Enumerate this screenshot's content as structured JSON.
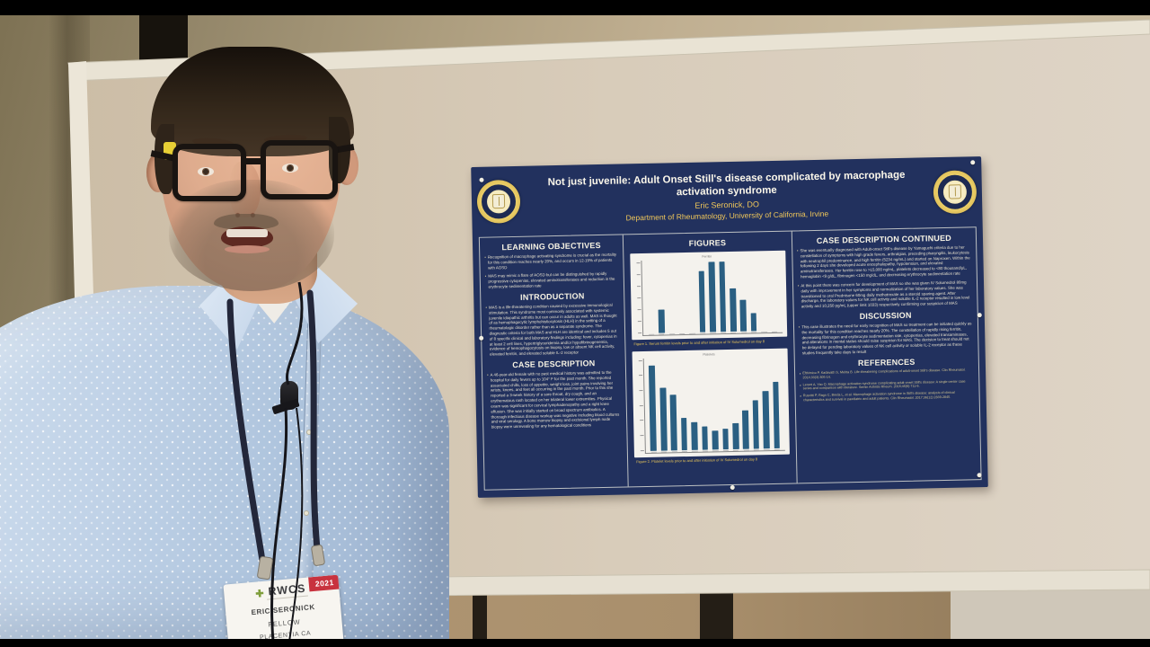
{
  "colors": {
    "poster_navy": "#22315e",
    "title_cream": "#fbf7ea",
    "gold": "#f0c75a",
    "bar_blue": "#2a5f82",
    "badge_red": "#c8323e",
    "badge_green": "#7f9e3c",
    "cork": "#d5c8b6"
  },
  "poster": {
    "title": "Not just juvenile: Adult Onset Still's disease complicated by macrophage activation syndrome",
    "author": "Eric Seronick, DO",
    "affiliation": "Department of Rheumatology, University of California, Irvine",
    "sections": {
      "learning_objectives": {
        "header": "LEARNING OBJECTIVES",
        "bullets": [
          "Recognition of macrophage activating syndrome is crucial as the mortality for this condition reaches nearly 20%, and occurs in 12-19% of patients with AOSD",
          "MAS may mimic a flare of AOSD but can be distinguished by rapidly progressive cytopenias, elevated aminotransferases and reduction in the erythrocyte sedimentation rate"
        ]
      },
      "introduction": {
        "header": "INTRODUCTION",
        "bullets": [
          "MAS is a life-threatening condition caused by excessive immunological stimulation. This syndrome most commonly associated with systemic juvenile idiopathic arthritis but can occur in adults as well. MAS is thought of as hemophagocytic lymphohistiocytosis (HLH) in the setting of a rheumatologic disorder rather than as a separate syndrome. The diagnostic criteria for both MAS and HLH are identical and includes 5 out of 8 specific clinical and laboratory findings including: fever, cytopenias in at least 2 cell lines, hypertriglyceridemia and/or hypofibrinogenemia, evidence of hemophagocytosis on biopsy, low or absent NK cell activity, elevated ferritin, and elevated soluble IL-2 receptor"
        ]
      },
      "case_description": {
        "header": "CASE DESCRIPTION",
        "bullets": [
          "A 46-year-old female with no past medical history was admitted to the hospital for daily fevers up to 104° F for the past month. She reported associated chills, loss of appetite, weight loss, joint pains involving her wrists, knees, and feet all occurring in the past month. Prior to this she reported a 3-week history of a sore throat, dry cough, and an erythematous rash located on her bilateral lower extremities. Physical exam was significant for cervical lymphadenopathy and a right knee effusion. She was initially started on broad spectrum antibiotics. A thorough infectious disease workup was negative including blood cultures and viral serology. A bone marrow biopsy and excisional lymph node biopsy were unrevealing for any hematological conditions"
        ]
      },
      "figures": {
        "header": "FIGURES"
      },
      "case_description_continued": {
        "header": "CASE DESCRIPTION CONTINUED",
        "bullets": [
          "She was eventually diagnosed with Adult-onset Still's disease by Yamaguchi criteria due to her constellation of symptoms with high grade fevers, arthralgias, preceding pharyngitis, leukocytosis with neutrophil predominance, and high ferritin (5234 ng/mL) and started on Naproxen. Within the following 2 days she developed acute encephalopathy, hypotension, and elevated aminotransferases. Her ferritin rose to >15,000 ng/mL, platelets decreased to <80 thousand/μL, hemoglobin <9 g/dL, fibrinogen <150 mg/dL, and decreasing erythrocyte sedimentation rate",
          "At this point there was concern for development of MAS so she was given IV Solumedrol 80mg daily with improvement in her symptoms and normalization of her laboratory values. She was transitioned to oral Prednisone 60mg daily methotrexate as a steroid sparing agent. After discharge, the laboratory values for NK cell activity and soluble IL-2 receptor resulted in low level activity and 10,250 pg/mL (upper limit 1033) respectively confirming our suspicion of MAS"
        ]
      },
      "discussion": {
        "header": "DISCUSSION",
        "bullets": [
          "This case illustrates the need for early recognition of MAS so treatment can be initiated quickly as the mortality for this condition reaches nearly 20%. The constellation of rapidly rising ferritin, decreasing fibrinogen and erythrocyte sedimentation rate, cytopenias, elevated transaminases, and alterations in mental status should raise suspicion for MAS. The decision to treat should not be delayed for pending laboratory values of NK cell activity or soluble IL-2 receptor as these studies frequently take days to result"
        ]
      },
      "references": {
        "header": "REFERENCES",
        "items": [
          "Efthimiou P, Kadavath S, Mehta B. Life-threatening complications of adult-onset Still's disease. Clin Rheumatol. 2014;33(3):305-14.",
          "Lenert A, Yao Q. Macrophage activation syndrome complicating adult onset Still's disease: A single center case series and comparison with literature. Semin Arthritis Rheum. 2016;45(6):711-6.",
          "Ruscitti P, Rago C, Breda L, et al. Macrophage activation syndrome in Still's disease: analysis of clinical characteristics and survival in paediatric and adult patients. Clin Rheumatol. 2017;36(12):2839-2845."
        ]
      }
    }
  },
  "chart_data": [
    {
      "type": "bar",
      "title": "Ferritin",
      "categories": [
        "Day 1",
        "Day 2",
        "Day 3",
        "Day 4",
        "Day 5",
        "Day 6",
        "Day 7",
        "Day 8",
        "Day 9",
        "Day 10",
        "Day 11",
        "Day 12",
        "Day 13"
      ],
      "values": [
        0,
        5234,
        0,
        0,
        0,
        13500,
        15500,
        15500,
        9500,
        7000,
        4000,
        0,
        0
      ],
      "ylim": [
        0,
        16000
      ],
      "xlabel": "",
      "ylabel": "",
      "caption": "Figure 1. Serum ferritin levels prior to and after initiation of IV Solumedrol on day 8"
    },
    {
      "type": "bar",
      "title": "Platelets",
      "categories": [
        "Day 1",
        "Day 2",
        "Day 3",
        "Day 4",
        "Day 5",
        "Day 6",
        "Day 7",
        "Day 8",
        "Day 9",
        "Day 10",
        "Day 11",
        "Day 12",
        "Day 13"
      ],
      "values": [
        230,
        170,
        150,
        88,
        75,
        62,
        50,
        55,
        70,
        105,
        130,
        155,
        180
      ],
      "ylim": [
        0,
        250
      ],
      "xlabel": "",
      "ylabel": "",
      "caption": "Figure 2. Platelet levels prior to and after initiation of IV Solumedrol on day 8"
    }
  ],
  "badge": {
    "org": "RWCS",
    "year": "2021",
    "name": "ERIC SERONICK",
    "role": "FELLOW",
    "city": "PLACENTIA CA",
    "plus": "✚"
  }
}
